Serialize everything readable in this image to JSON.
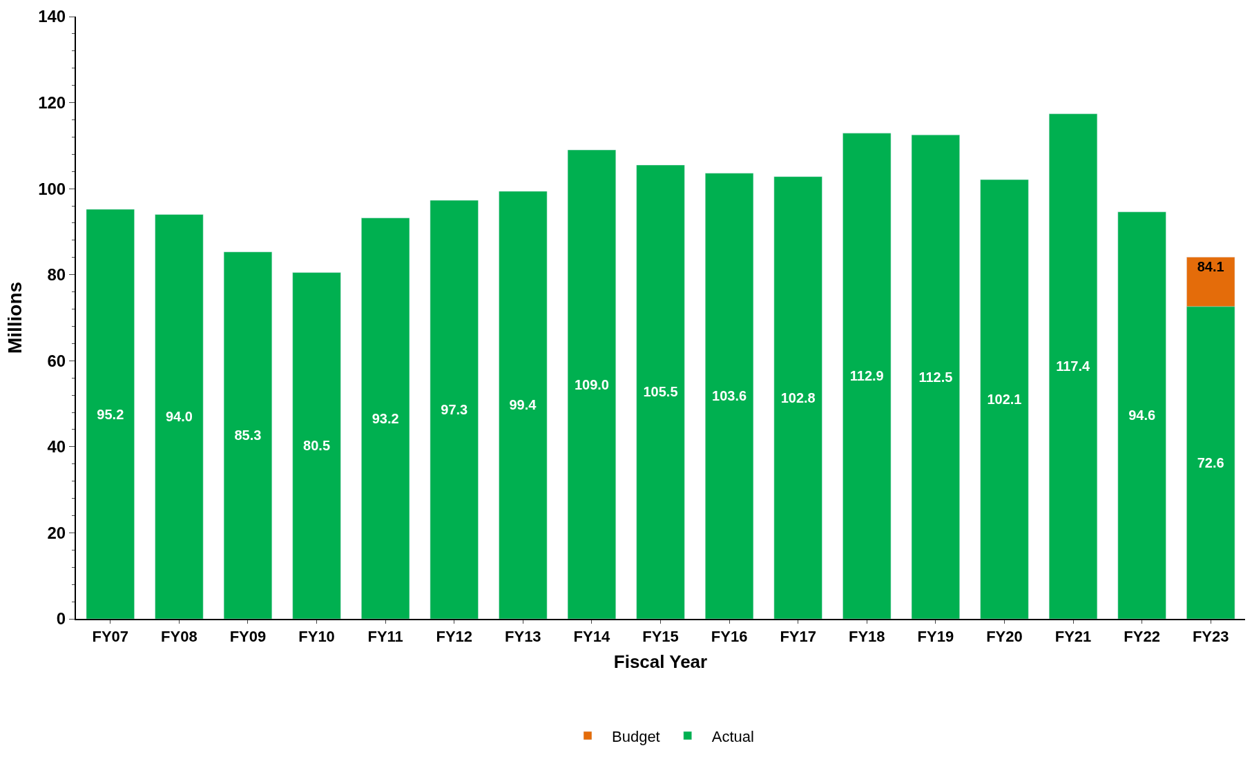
{
  "chart_data": {
    "type": "bar",
    "xlabel": "Fiscal Year",
    "ylabel": "Millions",
    "categories": [
      "FY07",
      "FY08",
      "FY09",
      "FY10",
      "FY11",
      "FY12",
      "FY13",
      "FY14",
      "FY15",
      "FY16",
      "FY17",
      "FY18",
      "FY19",
      "FY20",
      "FY21",
      "FY22",
      "FY23"
    ],
    "series": [
      {
        "name": "Budget",
        "color": "#e46c0a",
        "values": [
          null,
          null,
          null,
          null,
          null,
          null,
          null,
          null,
          null,
          null,
          null,
          null,
          null,
          null,
          null,
          null,
          84.1
        ],
        "value_labels": [
          null,
          null,
          null,
          null,
          null,
          null,
          null,
          null,
          null,
          null,
          null,
          null,
          null,
          null,
          null,
          null,
          "84.1"
        ]
      },
      {
        "name": "Actual",
        "color": "#00b050",
        "values": [
          95.2,
          94.0,
          85.3,
          80.5,
          93.2,
          97.3,
          99.4,
          109.0,
          105.5,
          103.6,
          102.8,
          112.9,
          112.5,
          102.1,
          117.4,
          94.6,
          72.6
        ],
        "value_labels": [
          "95.2",
          "94.0",
          "85.3",
          "80.5",
          "93.2",
          "97.3",
          "99.4",
          "109.0",
          "105.5",
          "103.6",
          "102.8",
          "112.9",
          "112.5",
          "102.1",
          "117.4",
          "94.6",
          "72.6"
        ]
      }
    ],
    "ylim": [
      0,
      140
    ],
    "yticks": [
      0,
      20,
      40,
      60,
      80,
      100,
      120,
      140
    ],
    "legend": "bottom"
  }
}
